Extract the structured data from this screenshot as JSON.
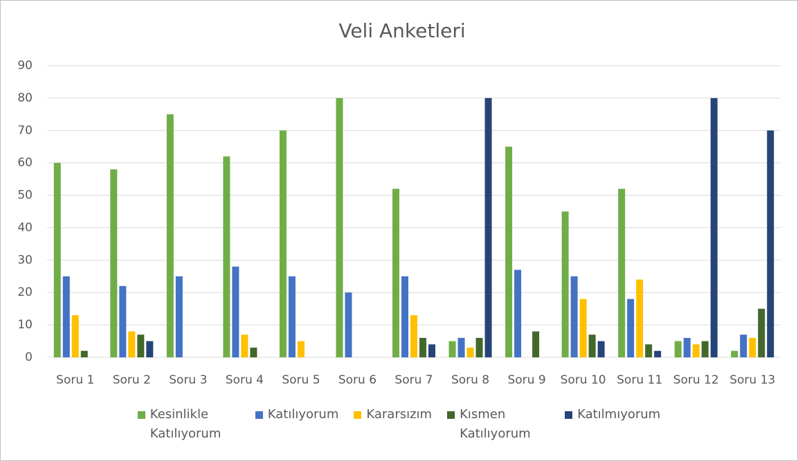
{
  "chart_data": {
    "type": "bar",
    "title": "Veli Anketleri",
    "categories": [
      "Soru 1",
      "Soru 2",
      "Soru 3",
      "Soru 4",
      "Soru 5",
      "Soru 6",
      "Soru 7",
      "Soru 8",
      "Soru 9",
      "Soru 10",
      "Soru 11",
      "Soru 12",
      "Soru 13"
    ],
    "series": [
      {
        "name": "Kesinlikle Katılıyorum",
        "color": "#70ad47",
        "values": [
          60,
          58,
          75,
          62,
          70,
          80,
          52,
          5,
          65,
          45,
          52,
          5,
          2
        ]
      },
      {
        "name": "Katılıyorum",
        "color": "#4472c4",
        "values": [
          25,
          22,
          25,
          28,
          25,
          20,
          25,
          6,
          27,
          25,
          18,
          6,
          7
        ]
      },
      {
        "name": "Kararsızım",
        "color": "#ffc000",
        "values": [
          13,
          8,
          0,
          7,
          5,
          0,
          13,
          3,
          0,
          18,
          24,
          4,
          6
        ]
      },
      {
        "name": "Kısmen Katılıyorum",
        "color": "#43682b",
        "values": [
          2,
          7,
          0,
          3,
          0,
          0,
          6,
          6,
          8,
          7,
          4,
          5,
          15
        ]
      },
      {
        "name": "Katılmıyorum",
        "color": "#264478",
        "values": [
          0,
          5,
          0,
          0,
          0,
          0,
          4,
          80,
          0,
          5,
          2,
          80,
          70
        ]
      }
    ],
    "ylim": [
      0,
      90
    ],
    "yticks": [
      0,
      10,
      20,
      30,
      40,
      50,
      60,
      70,
      80,
      90
    ],
    "grid": true,
    "legend": "bottom"
  }
}
